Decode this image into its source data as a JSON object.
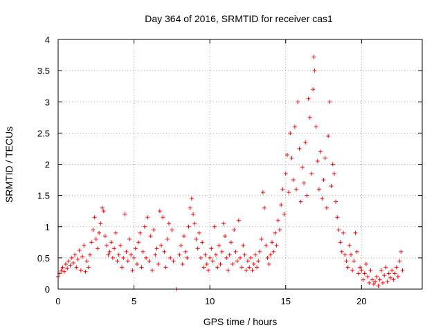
{
  "chart_data": {
    "type": "scatter",
    "title": "Day 364 of 2016, SRMTID for receiver cas1",
    "xlabel": "GPS time / hours",
    "ylabel": "SRMTID / TECUs",
    "xlim": [
      0,
      24
    ],
    "ylim": [
      0,
      4
    ],
    "x_ticks": [
      0,
      5,
      10,
      15,
      20
    ],
    "x_tick_labels": [
      "0",
      "5",
      "10",
      "15",
      "20"
    ],
    "y_ticks": [
      0,
      0.5,
      1,
      1.5,
      2,
      2.5,
      3,
      3.5,
      4
    ],
    "y_tick_labels": [
      "0",
      "0.5",
      "1",
      "1.5",
      "2",
      "2.5",
      "3",
      "3.5",
      "4"
    ],
    "grid": true,
    "marker": "+",
    "color": "#ff0000",
    "series": [
      {
        "name": "SRMTID",
        "points": [
          [
            0.0,
            0.2
          ],
          [
            0.1,
            0.25
          ],
          [
            0.2,
            0.3
          ],
          [
            0.3,
            0.35
          ],
          [
            0.4,
            0.28
          ],
          [
            0.5,
            0.4
          ],
          [
            0.6,
            0.33
          ],
          [
            0.7,
            0.45
          ],
          [
            0.8,
            0.38
          ],
          [
            0.9,
            0.5
          ],
          [
            1.0,
            0.42
          ],
          [
            1.1,
            0.55
          ],
          [
            1.2,
            0.35
          ],
          [
            1.3,
            0.48
          ],
          [
            1.4,
            0.62
          ],
          [
            1.5,
            0.3
          ],
          [
            1.6,
            0.52
          ],
          [
            1.7,
            0.7
          ],
          [
            1.8,
            0.28
          ],
          [
            1.9,
            0.45
          ],
          [
            2.0,
            0.35
          ],
          [
            2.1,
            0.55
          ],
          [
            2.2,
            0.75
          ],
          [
            2.3,
            0.95
          ],
          [
            2.4,
            1.15
          ],
          [
            2.5,
            0.8
          ],
          [
            2.6,
            0.65
          ],
          [
            2.7,
            0.9
          ],
          [
            2.8,
            1.05
          ],
          [
            2.9,
            1.3
          ],
          [
            3.0,
            1.25
          ],
          [
            3.1,
            0.85
          ],
          [
            3.2,
            0.7
          ],
          [
            3.3,
            0.55
          ],
          [
            3.4,
            0.6
          ],
          [
            3.5,
            0.75
          ],
          [
            3.6,
            0.5
          ],
          [
            3.7,
            0.65
          ],
          [
            3.8,
            0.9
          ],
          [
            3.9,
            0.45
          ],
          [
            4.0,
            0.55
          ],
          [
            4.1,
            0.7
          ],
          [
            4.2,
            0.35
          ],
          [
            4.3,
            0.5
          ],
          [
            4.4,
            1.2
          ],
          [
            4.5,
            0.6
          ],
          [
            4.6,
            0.45
          ],
          [
            4.7,
            0.8
          ],
          [
            4.8,
            0.55
          ],
          [
            4.9,
            0.3
          ],
          [
            5.0,
            0.5
          ],
          [
            5.1,
            0.65
          ],
          [
            5.2,
            0.4
          ],
          [
            5.3,
            0.75
          ],
          [
            5.4,
            0.9
          ],
          [
            5.5,
            0.35
          ],
          [
            5.6,
            0.6
          ],
          [
            5.7,
            1.0
          ],
          [
            5.8,
            0.5
          ],
          [
            5.9,
            1.15
          ],
          [
            6.0,
            0.45
          ],
          [
            6.1,
            0.85
          ],
          [
            6.2,
            0.3
          ],
          [
            6.3,
            0.95
          ],
          [
            6.4,
            0.55
          ],
          [
            6.5,
            0.65
          ],
          [
            6.6,
            0.4
          ],
          [
            6.7,
            1.25
          ],
          [
            6.8,
            0.7
          ],
          [
            6.9,
            1.15
          ],
          [
            7.0,
            0.6
          ],
          [
            7.1,
            0.35
          ],
          [
            7.2,
            0.8
          ],
          [
            7.3,
            1.05
          ],
          [
            7.4,
            0.5
          ],
          [
            7.5,
            0.95
          ],
          [
            7.6,
            0.45
          ],
          [
            7.8,
            0.0
          ],
          [
            8.0,
            0.55
          ],
          [
            8.1,
            0.7
          ],
          [
            8.2,
            0.4
          ],
          [
            8.3,
            0.85
          ],
          [
            8.4,
            0.6
          ],
          [
            8.5,
            0.5
          ],
          [
            8.6,
            1.0
          ],
          [
            8.7,
            1.3
          ],
          [
            8.8,
            1.45
          ],
          [
            8.9,
            1.2
          ],
          [
            9.0,
            1.05
          ],
          [
            9.1,
            0.8
          ],
          [
            9.2,
            0.65
          ],
          [
            9.3,
            0.9
          ],
          [
            9.4,
            0.5
          ],
          [
            9.5,
            0.75
          ],
          [
            9.6,
            0.35
          ],
          [
            9.7,
            0.55
          ],
          [
            9.8,
            0.4
          ],
          [
            9.9,
            0.3
          ],
          [
            10.0,
            0.5
          ],
          [
            10.1,
            0.65
          ],
          [
            10.2,
            0.45
          ],
          [
            10.3,
            1.0
          ],
          [
            10.4,
            0.55
          ],
          [
            10.5,
            0.35
          ],
          [
            10.6,
            0.7
          ],
          [
            10.7,
            0.4
          ],
          [
            10.8,
            0.6
          ],
          [
            10.9,
            1.05
          ],
          [
            11.0,
            0.85
          ],
          [
            11.1,
            0.5
          ],
          [
            11.2,
            0.3
          ],
          [
            11.3,
            0.55
          ],
          [
            11.4,
            0.75
          ],
          [
            11.5,
            0.4
          ],
          [
            11.6,
            0.95
          ],
          [
            11.7,
            0.6
          ],
          [
            11.8,
            0.45
          ],
          [
            11.9,
            1.1
          ],
          [
            12.0,
            0.5
          ],
          [
            12.1,
            0.35
          ],
          [
            12.2,
            0.7
          ],
          [
            12.3,
            0.55
          ],
          [
            12.4,
            0.3
          ],
          [
            12.5,
            0.45
          ],
          [
            12.6,
            0.35
          ],
          [
            12.7,
            0.5
          ],
          [
            12.8,
            0.3
          ],
          [
            12.9,
            0.4
          ],
          [
            13.0,
            0.55
          ],
          [
            13.1,
            0.35
          ],
          [
            13.2,
            0.45
          ],
          [
            13.3,
            0.6
          ],
          [
            13.4,
            0.8
          ],
          [
            13.5,
            1.55
          ],
          [
            13.6,
            1.3
          ],
          [
            13.7,
            0.7
          ],
          [
            13.8,
            0.5
          ],
          [
            13.9,
            0.4
          ],
          [
            14.0,
            0.55
          ],
          [
            14.1,
            0.75
          ],
          [
            14.2,
            0.6
          ],
          [
            14.3,
            0.9
          ],
          [
            14.4,
            0.7
          ],
          [
            14.5,
            1.1
          ],
          [
            14.6,
            0.95
          ],
          [
            14.7,
            1.35
          ],
          [
            14.8,
            1.6
          ],
          [
            14.9,
            1.2
          ],
          [
            15.0,
            1.85
          ],
          [
            15.1,
            2.15
          ],
          [
            15.2,
            1.55
          ],
          [
            15.3,
            2.5
          ],
          [
            15.4,
            2.1
          ],
          [
            15.5,
            1.75
          ],
          [
            15.6,
            2.6
          ],
          [
            15.7,
            1.6
          ],
          [
            15.8,
            3.0
          ],
          [
            15.9,
            2.25
          ],
          [
            16.0,
            1.4
          ],
          [
            16.1,
            1.95
          ],
          [
            16.2,
            1.7
          ],
          [
            16.3,
            2.35
          ],
          [
            16.4,
            1.5
          ],
          [
            16.5,
            3.05
          ],
          [
            16.6,
            2.75
          ],
          [
            16.7,
            1.85
          ],
          [
            16.8,
            3.2
          ],
          [
            16.85,
            3.72
          ],
          [
            16.9,
            3.5
          ],
          [
            17.0,
            2.6
          ],
          [
            17.1,
            2.05
          ],
          [
            17.2,
            1.6
          ],
          [
            17.3,
            2.2
          ],
          [
            17.4,
            1.45
          ],
          [
            17.5,
            1.75
          ],
          [
            17.6,
            2.1
          ],
          [
            17.7,
            1.3
          ],
          [
            17.8,
            2.45
          ],
          [
            17.9,
            3.0
          ],
          [
            18.0,
            1.65
          ],
          [
            18.1,
            2.0
          ],
          [
            18.2,
            1.85
          ],
          [
            18.3,
            1.4
          ],
          [
            18.4,
            1.15
          ],
          [
            18.5,
            0.95
          ],
          [
            18.6,
            0.75
          ],
          [
            18.7,
            0.6
          ],
          [
            18.8,
            0.9
          ],
          [
            18.9,
            0.55
          ],
          [
            19.0,
            0.45
          ],
          [
            19.1,
            0.35
          ],
          [
            19.2,
            0.7
          ],
          [
            19.3,
            0.55
          ],
          [
            19.4,
            0.3
          ],
          [
            19.5,
            0.45
          ],
          [
            19.6,
            0.9
          ],
          [
            19.7,
            0.6
          ],
          [
            19.8,
            0.25
          ],
          [
            19.9,
            0.35
          ],
          [
            20.0,
            0.3
          ],
          [
            20.1,
            0.15
          ],
          [
            20.2,
            0.25
          ],
          [
            20.3,
            0.4
          ],
          [
            20.4,
            0.2
          ],
          [
            20.5,
            0.1
          ],
          [
            20.6,
            0.3
          ],
          [
            20.7,
            0.15
          ],
          [
            20.8,
            0.08
          ],
          [
            20.9,
            0.12
          ],
          [
            21.0,
            0.2
          ],
          [
            21.1,
            0.05
          ],
          [
            21.2,
            0.15
          ],
          [
            21.3,
            0.3
          ],
          [
            21.4,
            0.1
          ],
          [
            21.5,
            0.22
          ],
          [
            21.6,
            0.35
          ],
          [
            21.7,
            0.12
          ],
          [
            21.8,
            0.25
          ],
          [
            21.9,
            0.18
          ],
          [
            22.0,
            0.3
          ],
          [
            22.1,
            0.15
          ],
          [
            22.2,
            0.25
          ],
          [
            22.3,
            0.35
          ],
          [
            22.4,
            0.2
          ],
          [
            22.5,
            0.45
          ],
          [
            22.6,
            0.6
          ],
          [
            22.7,
            0.3
          ]
        ]
      }
    ]
  }
}
